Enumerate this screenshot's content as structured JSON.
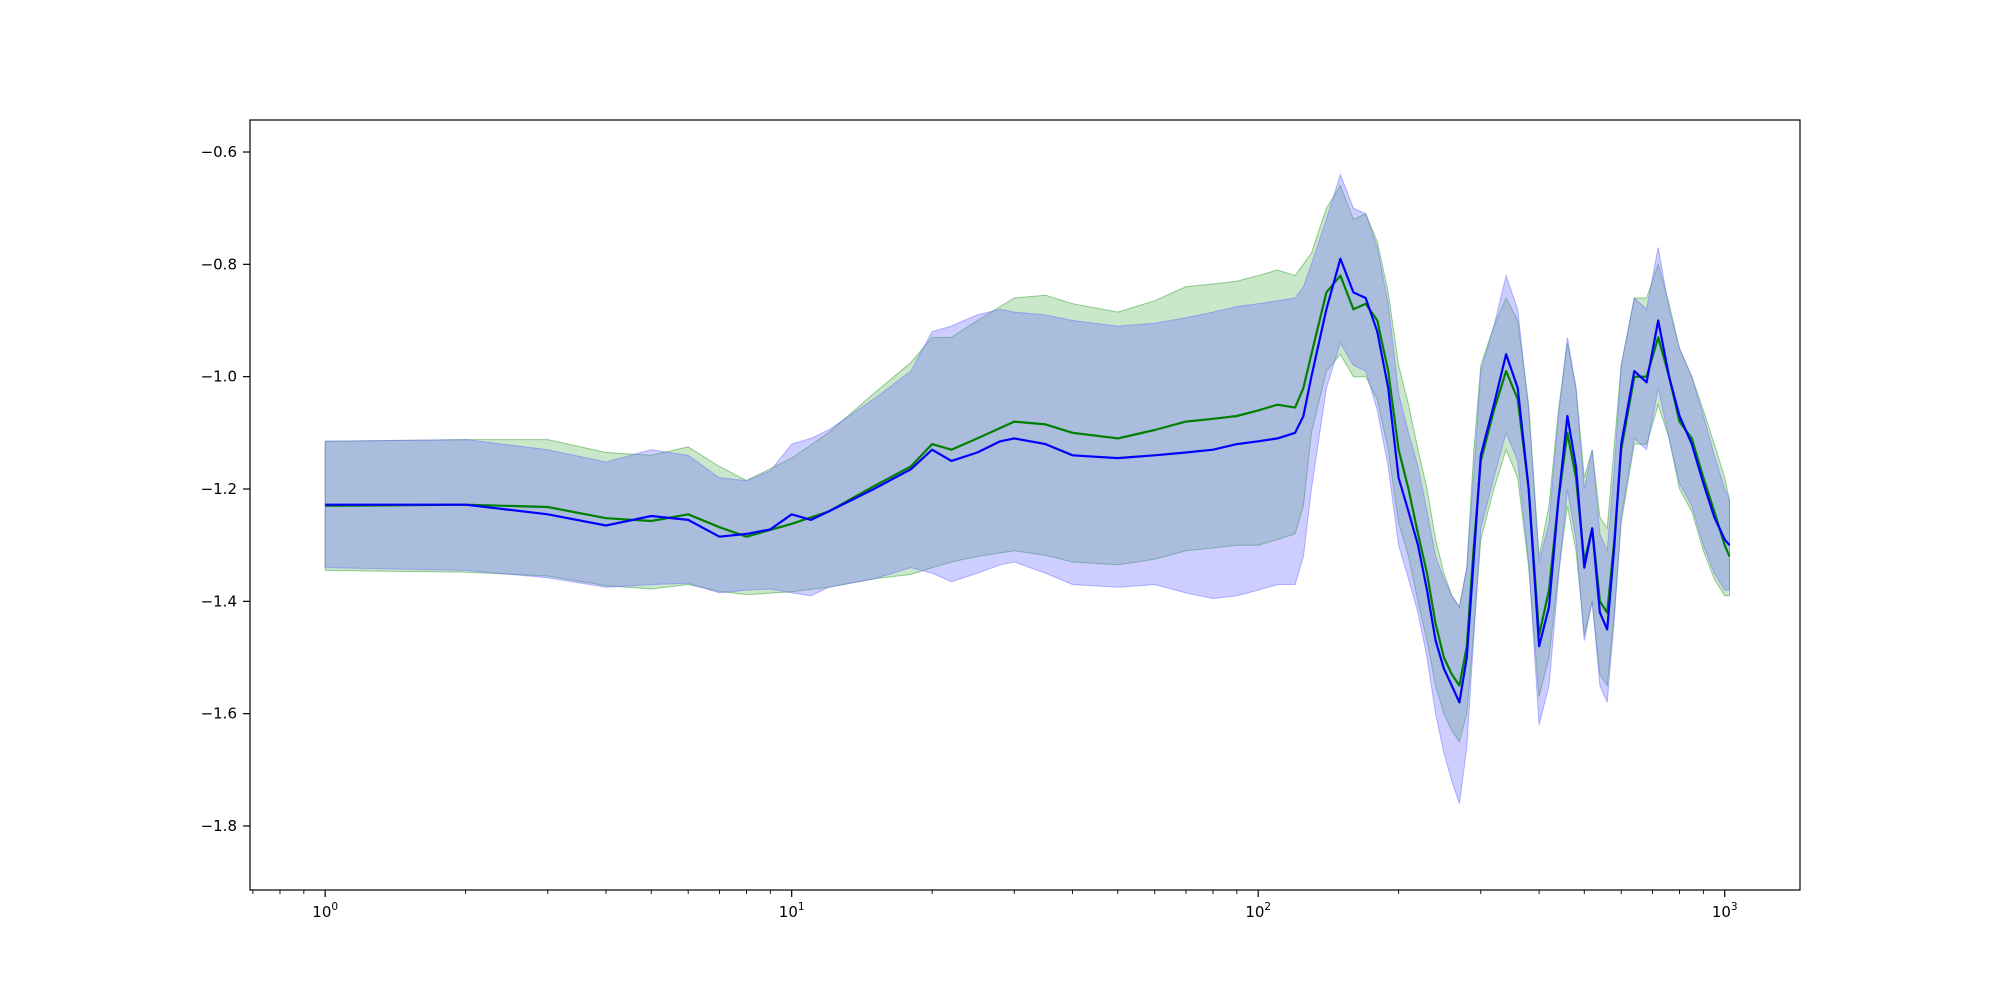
{
  "chart_data": {
    "type": "line",
    "title": "",
    "xlabel": "",
    "ylabel": "",
    "x_scale": "log",
    "xlim": [
      0.69,
      1450
    ],
    "ylim": [
      -1.914,
      -0.543
    ],
    "x_ticks": [
      1,
      10,
      100,
      1000
    ],
    "x_tick_labels": [
      {
        "base": "10",
        "exp": "0"
      },
      {
        "base": "10",
        "exp": "1"
      },
      {
        "base": "10",
        "exp": "2"
      },
      {
        "base": "10",
        "exp": "3"
      }
    ],
    "y_ticks": [
      -0.6,
      -0.8,
      -1.0,
      -1.2,
      -1.4,
      -1.6,
      -1.8
    ],
    "y_tick_labels": [
      "−0.6",
      "−0.8",
      "−1.0",
      "−1.2",
      "−1.4",
      "−1.6",
      "−1.8"
    ],
    "grid": false,
    "series": [
      {
        "color": "#008000",
        "band_color": "#2ca02c",
        "x": [
          1,
          2,
          3,
          4,
          5,
          6,
          7,
          8,
          10,
          12,
          15,
          18,
          20,
          22,
          25,
          30,
          35,
          40,
          50,
          60,
          70,
          80,
          90,
          100,
          110,
          120,
          125,
          130,
          140,
          150,
          160,
          170,
          180,
          190,
          200,
          210,
          220,
          230,
          240,
          250,
          260,
          270,
          280,
          290,
          300,
          320,
          340,
          360,
          380,
          400,
          420,
          440,
          460,
          480,
          500,
          520,
          540,
          560,
          580,
          600,
          640,
          680,
          720,
          760,
          800,
          850,
          900,
          950,
          1000,
          1024
        ],
        "y": [
          -1.23,
          -1.228,
          -1.232,
          -1.252,
          -1.257,
          -1.245,
          -1.268,
          -1.285,
          -1.262,
          -1.24,
          -1.195,
          -1.16,
          -1.12,
          -1.13,
          -1.11,
          -1.08,
          -1.085,
          -1.1,
          -1.11,
          -1.095,
          -1.08,
          -1.075,
          -1.07,
          -1.06,
          -1.05,
          -1.055,
          -1.02,
          -0.96,
          -0.85,
          -0.82,
          -0.88,
          -0.87,
          -0.9,
          -0.99,
          -1.13,
          -1.2,
          -1.28,
          -1.35,
          -1.44,
          -1.5,
          -1.53,
          -1.55,
          -1.48,
          -1.3,
          -1.15,
          -1.06,
          -0.99,
          -1.04,
          -1.2,
          -1.46,
          -1.38,
          -1.22,
          -1.1,
          -1.18,
          -1.33,
          -1.27,
          -1.4,
          -1.42,
          -1.29,
          -1.13,
          -1.0,
          -1.0,
          -0.93,
          -1.0,
          -1.08,
          -1.11,
          -1.18,
          -1.24,
          -1.3,
          -1.32
        ],
        "lower": [
          -1.345,
          -1.348,
          -1.355,
          -1.372,
          -1.378,
          -1.37,
          -1.382,
          -1.388,
          -1.383,
          -1.375,
          -1.36,
          -1.352,
          -1.34,
          -1.33,
          -1.32,
          -1.31,
          -1.318,
          -1.33,
          -1.335,
          -1.325,
          -1.31,
          -1.305,
          -1.3,
          -1.3,
          -1.29,
          -1.28,
          -1.23,
          -1.1,
          -0.99,
          -0.96,
          -1.0,
          -1.0,
          -1.04,
          -1.13,
          -1.26,
          -1.32,
          -1.4,
          -1.47,
          -1.55,
          -1.6,
          -1.63,
          -1.65,
          -1.6,
          -1.45,
          -1.29,
          -1.2,
          -1.13,
          -1.18,
          -1.34,
          -1.57,
          -1.5,
          -1.35,
          -1.23,
          -1.31,
          -1.46,
          -1.4,
          -1.53,
          -1.55,
          -1.42,
          -1.26,
          -1.12,
          -1.12,
          -1.05,
          -1.11,
          -1.2,
          -1.24,
          -1.31,
          -1.36,
          -1.39,
          -1.39
        ],
        "upper": [
          -1.115,
          -1.112,
          -1.112,
          -1.135,
          -1.14,
          -1.125,
          -1.16,
          -1.185,
          -1.145,
          -1.1,
          -1.03,
          -0.975,
          -0.93,
          -0.93,
          -0.9,
          -0.86,
          -0.855,
          -0.87,
          -0.885,
          -0.865,
          -0.84,
          -0.835,
          -0.83,
          -0.82,
          -0.81,
          -0.82,
          -0.8,
          -0.78,
          -0.7,
          -0.66,
          -0.72,
          -0.71,
          -0.76,
          -0.85,
          -0.98,
          -1.05,
          -1.13,
          -1.2,
          -1.29,
          -1.35,
          -1.39,
          -1.41,
          -1.34,
          -1.13,
          -0.98,
          -0.91,
          -0.86,
          -0.9,
          -1.05,
          -1.32,
          -1.23,
          -1.06,
          -0.94,
          -1.02,
          -1.18,
          -1.13,
          -1.25,
          -1.27,
          -1.12,
          -0.98,
          -0.86,
          -0.86,
          -0.8,
          -0.87,
          -0.95,
          -1.0,
          -1.06,
          -1.12,
          -1.18,
          -1.22
        ]
      },
      {
        "color": "#0000ff",
        "band_color": "#6f6fff",
        "x": [
          1,
          2,
          3,
          4,
          5,
          6,
          7,
          8,
          9,
          10,
          11,
          12,
          15,
          18,
          20,
          22,
          25,
          28,
          30,
          35,
          40,
          50,
          60,
          70,
          80,
          90,
          100,
          110,
          120,
          125,
          130,
          140,
          150,
          160,
          170,
          180,
          190,
          200,
          210,
          220,
          230,
          240,
          250,
          260,
          270,
          280,
          290,
          300,
          320,
          340,
          360,
          380,
          400,
          420,
          440,
          460,
          480,
          500,
          520,
          540,
          560,
          580,
          600,
          640,
          680,
          720,
          760,
          800,
          850,
          900,
          950,
          1000,
          1024
        ],
        "y": [
          -1.228,
          -1.228,
          -1.245,
          -1.265,
          -1.248,
          -1.255,
          -1.285,
          -1.28,
          -1.272,
          -1.245,
          -1.255,
          -1.24,
          -1.2,
          -1.165,
          -1.13,
          -1.15,
          -1.135,
          -1.115,
          -1.11,
          -1.12,
          -1.14,
          -1.145,
          -1.14,
          -1.135,
          -1.13,
          -1.12,
          -1.115,
          -1.11,
          -1.1,
          -1.07,
          -1.0,
          -0.88,
          -0.79,
          -0.85,
          -0.86,
          -0.92,
          -1.02,
          -1.18,
          -1.24,
          -1.3,
          -1.38,
          -1.47,
          -1.52,
          -1.55,
          -1.58,
          -1.5,
          -1.32,
          -1.14,
          -1.05,
          -0.96,
          -1.02,
          -1.2,
          -1.48,
          -1.41,
          -1.22,
          -1.07,
          -1.16,
          -1.34,
          -1.27,
          -1.42,
          -1.45,
          -1.3,
          -1.12,
          -0.99,
          -1.01,
          -0.9,
          -1.0,
          -1.07,
          -1.12,
          -1.19,
          -1.25,
          -1.29,
          -1.3
        ],
        "lower": [
          -1.34,
          -1.345,
          -1.358,
          -1.375,
          -1.37,
          -1.368,
          -1.385,
          -1.38,
          -1.378,
          -1.385,
          -1.39,
          -1.375,
          -1.36,
          -1.34,
          -1.35,
          -1.365,
          -1.35,
          -1.335,
          -1.33,
          -1.35,
          -1.37,
          -1.375,
          -1.37,
          -1.385,
          -1.395,
          -1.39,
          -1.38,
          -1.37,
          -1.37,
          -1.32,
          -1.2,
          -1.02,
          -0.94,
          -0.98,
          -0.99,
          -1.06,
          -1.16,
          -1.3,
          -1.36,
          -1.42,
          -1.5,
          -1.6,
          -1.67,
          -1.72,
          -1.76,
          -1.66,
          -1.46,
          -1.27,
          -1.18,
          -1.1,
          -1.15,
          -1.33,
          -1.62,
          -1.55,
          -1.36,
          -1.2,
          -1.29,
          -1.47,
          -1.4,
          -1.55,
          -1.58,
          -1.43,
          -1.25,
          -1.11,
          -1.13,
          -1.02,
          -1.11,
          -1.19,
          -1.23,
          -1.3,
          -1.35,
          -1.38,
          -1.38
        ],
        "upper": [
          -1.115,
          -1.112,
          -1.13,
          -1.152,
          -1.13,
          -1.14,
          -1.18,
          -1.185,
          -1.168,
          -1.12,
          -1.11,
          -1.095,
          -1.04,
          -0.99,
          -0.92,
          -0.91,
          -0.89,
          -0.88,
          -0.885,
          -0.89,
          -0.9,
          -0.91,
          -0.905,
          -0.895,
          -0.885,
          -0.875,
          -0.87,
          -0.865,
          -0.86,
          -0.84,
          -0.8,
          -0.72,
          -0.64,
          -0.7,
          -0.71,
          -0.77,
          -0.87,
          -1.03,
          -1.1,
          -1.16,
          -1.24,
          -1.32,
          -1.36,
          -1.39,
          -1.41,
          -1.34,
          -1.17,
          -0.99,
          -0.91,
          -0.82,
          -0.88,
          -1.06,
          -1.33,
          -1.26,
          -1.07,
          -0.93,
          -1.02,
          -1.2,
          -1.13,
          -1.28,
          -1.31,
          -1.16,
          -0.98,
          -0.86,
          -0.88,
          -0.77,
          -0.88,
          -0.95,
          -1.0,
          -1.07,
          -1.14,
          -1.2,
          -1.22
        ]
      }
    ]
  }
}
